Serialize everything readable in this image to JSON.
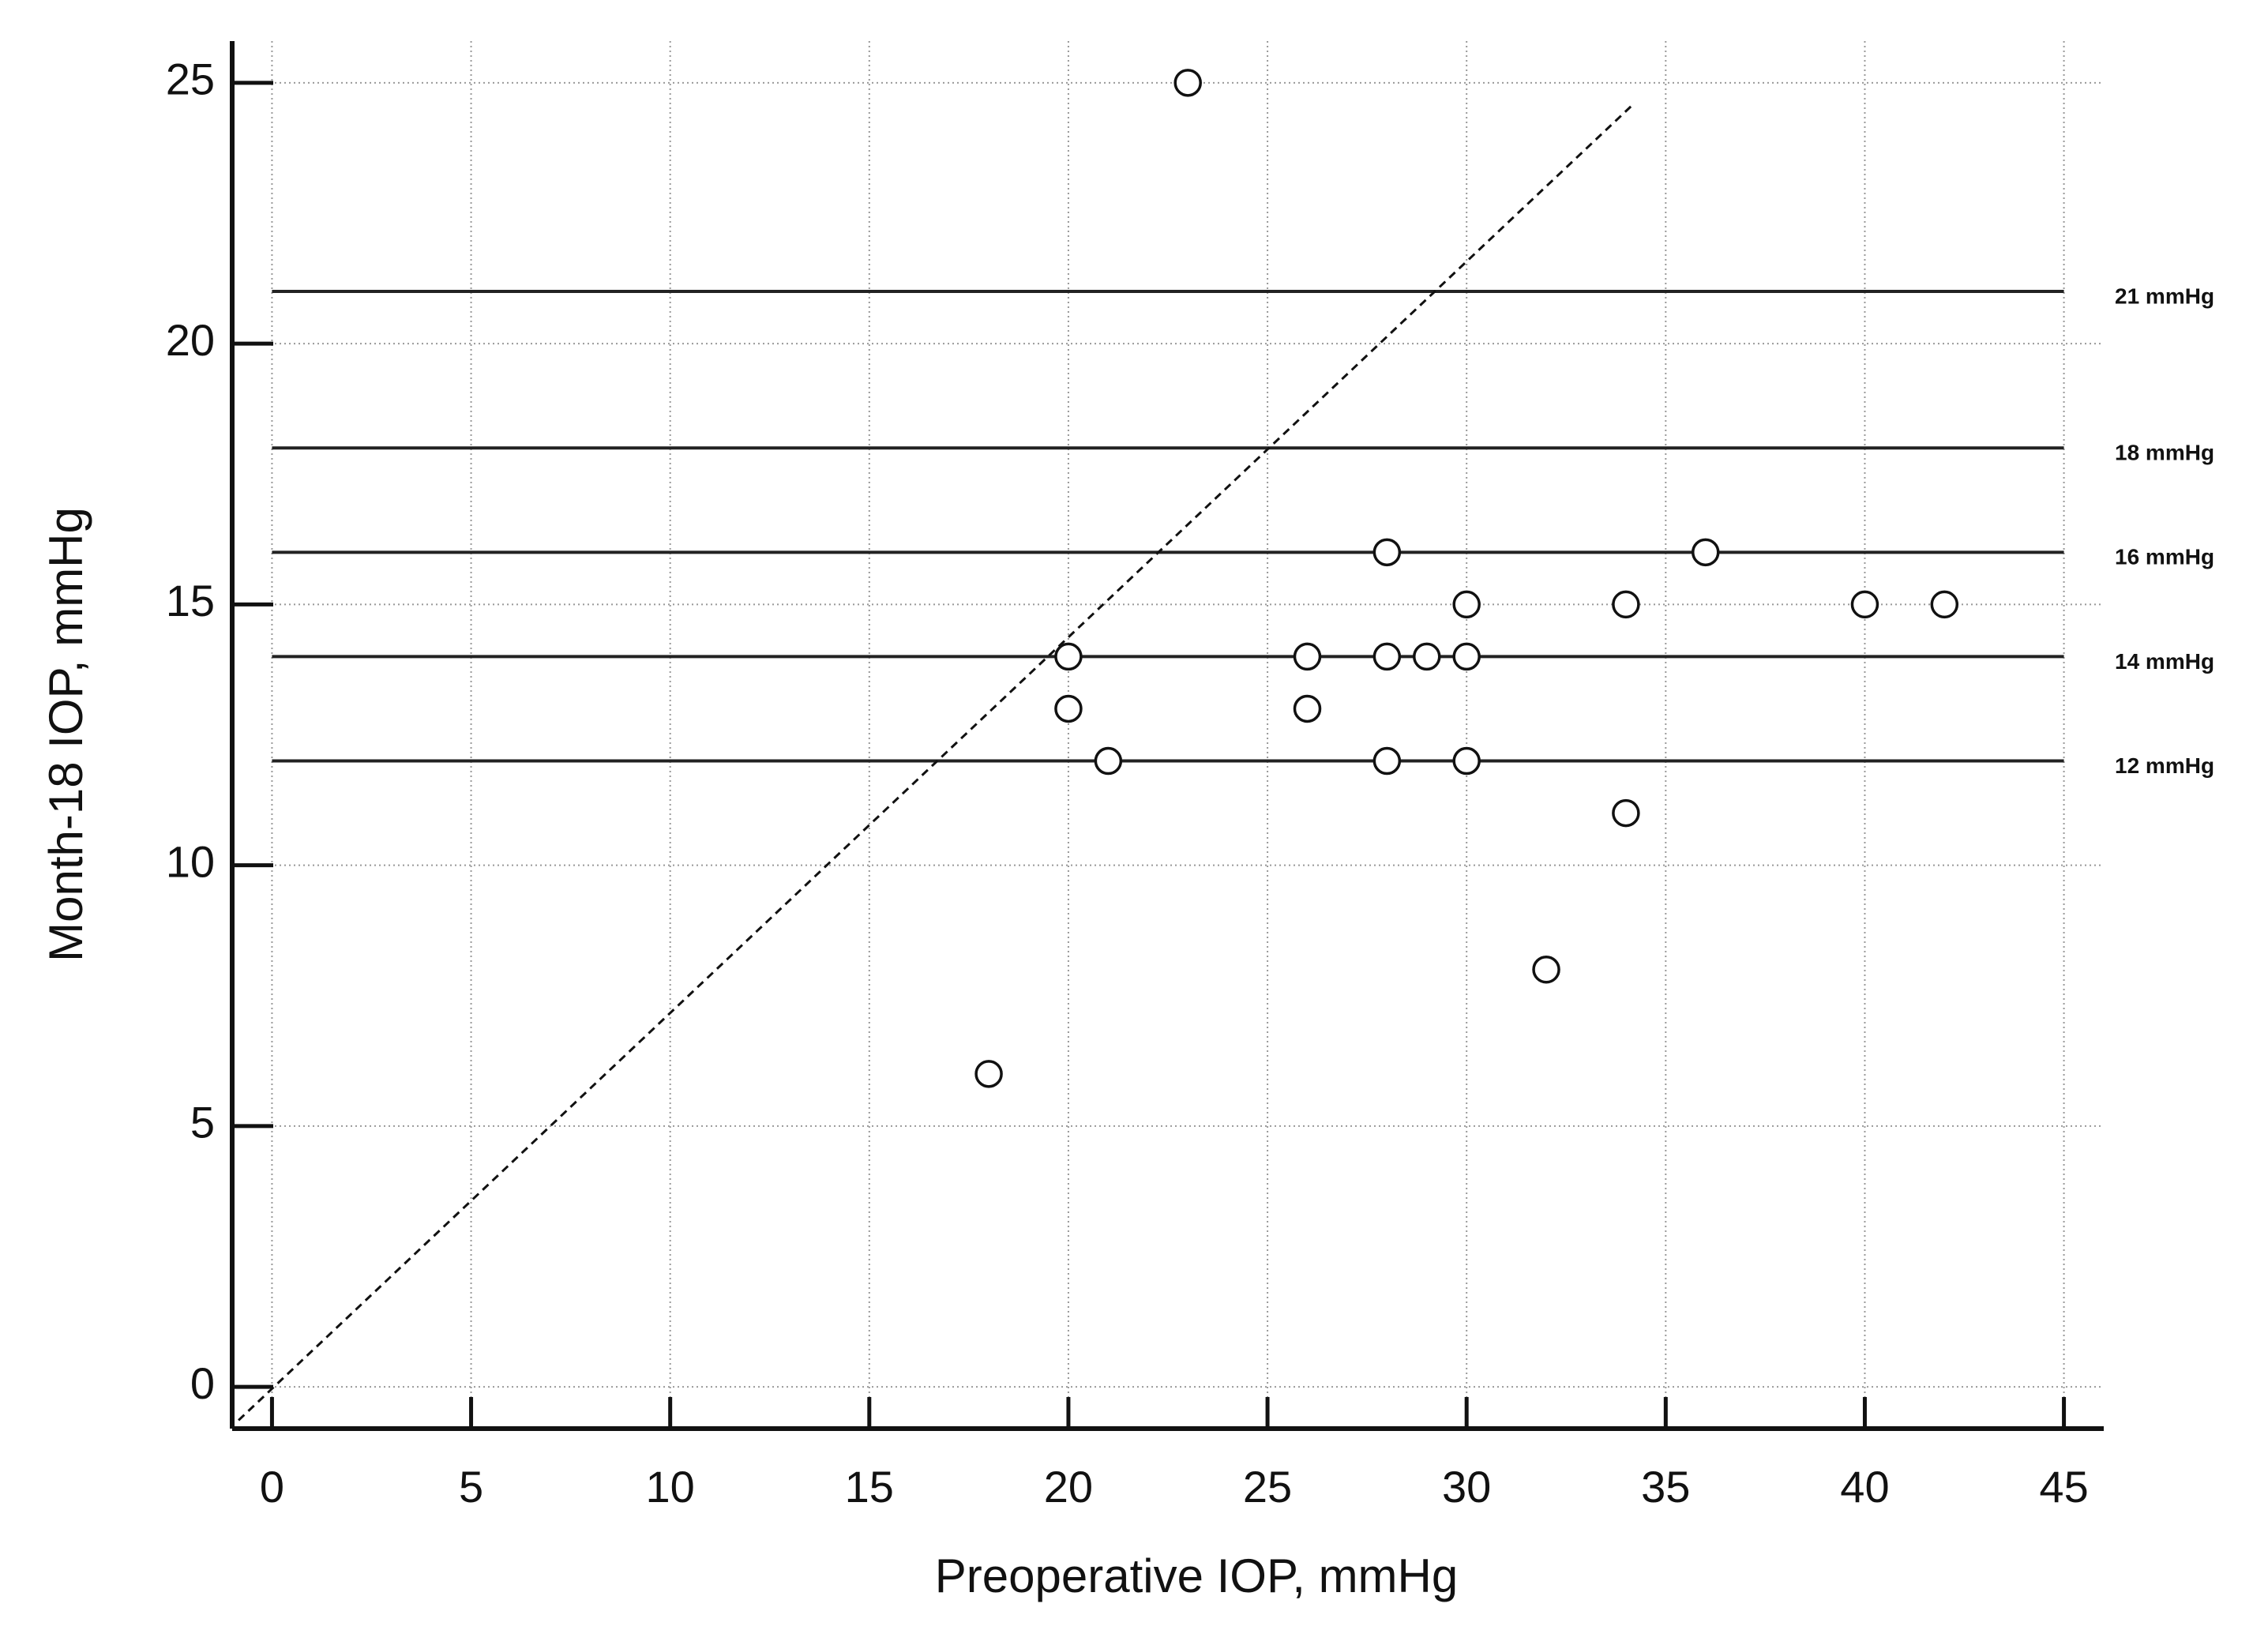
{
  "chart_data": {
    "type": "scatter",
    "x_label": "Preoperative IOP, mmHg",
    "y_label": "Month-18 IOP, mmHg",
    "x": [
      23,
      28,
      36,
      30,
      34,
      40,
      42,
      20,
      26,
      28,
      29,
      30,
      20,
      26,
      21,
      28,
      30,
      34,
      32,
      18
    ],
    "values": [
      25,
      16,
      16,
      15,
      15,
      15,
      15,
      14,
      14,
      14,
      14,
      14,
      13,
      13,
      12,
      12,
      12,
      11,
      8,
      6
    ],
    "color": "#ffffff",
    "xlim": [
      -1,
      46
    ],
    "ylim": [
      -0.8,
      25.8
    ],
    "xticks": [
      0,
      5,
      10,
      15,
      20,
      25,
      30,
      35,
      40,
      45
    ],
    "yticks": [
      0,
      5,
      10,
      15,
      20,
      25
    ],
    "grid": true,
    "reference_lines": [
      {
        "value": 21,
        "label": "21 mmHg"
      },
      {
        "value": 18,
        "label": "18 mmHg"
      },
      {
        "value": 16,
        "label": "16 mmHg"
      },
      {
        "value": 14,
        "label": "14 mmHg"
      },
      {
        "value": 12,
        "label": "12 mmHg"
      }
    ],
    "dashed_line": {
      "x": [
        -0.84,
        34.2
      ],
      "y": [
        -0.64,
        24.6
      ]
    }
  }
}
